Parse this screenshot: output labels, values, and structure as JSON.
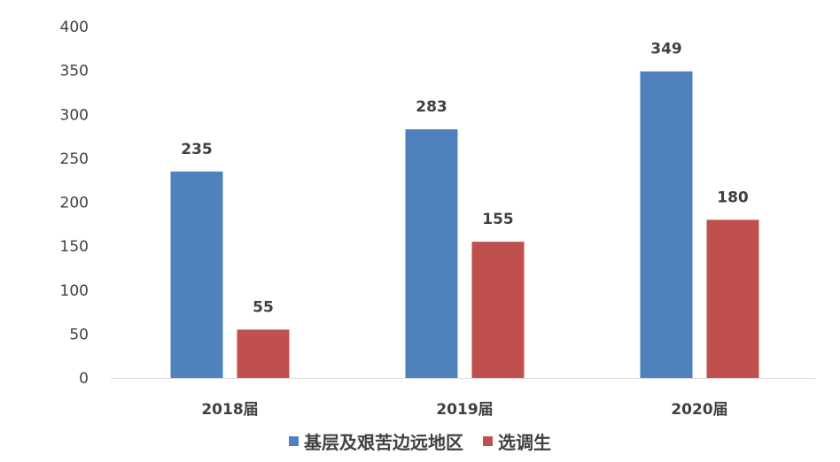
{
  "chart_data": {
    "type": "bar",
    "categories": [
      "2018届",
      "2019届",
      "2020届"
    ],
    "series": [
      {
        "name": "基层及艰苦边远地区",
        "values": [
          235,
          283,
          349
        ],
        "color": "#4F81BD"
      },
      {
        "name": "选调生",
        "values": [
          55,
          155,
          180
        ],
        "color": "#C0504D"
      }
    ],
    "yticks": [
      "0",
      "50",
      "100",
      "150",
      "200",
      "250",
      "300",
      "350",
      "400"
    ],
    "ylim": [
      0,
      400
    ],
    "grid": false,
    "data_labels": true,
    "legend_position": "bottom"
  }
}
